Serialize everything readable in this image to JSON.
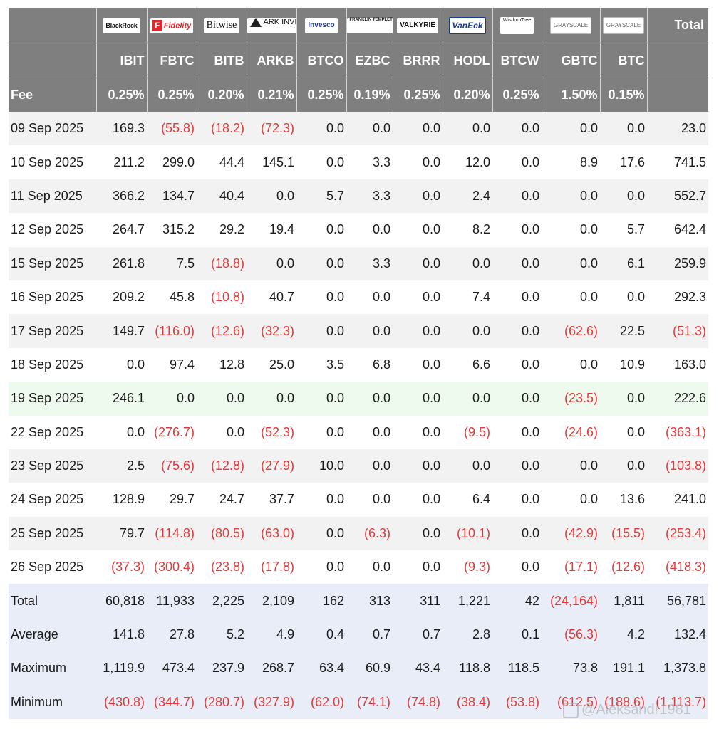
{
  "logos": [
    "BlackRock",
    "Fidelity",
    "Bitwise",
    "ARK INVEST",
    "Invesco",
    "FRANKLIN TEMPLETON",
    "VALKYRIE",
    "VanEck",
    "WisdomTree",
    "GRAYSCALE",
    "GRAYSCALE"
  ],
  "header": {
    "total_label": "Total",
    "fee_label": "Fee",
    "tickers": [
      "IBIT",
      "FBTC",
      "BITB",
      "ARKB",
      "BTCO",
      "EZBC",
      "BRRR",
      "HODL",
      "BTCW",
      "GBTC",
      "BTC"
    ],
    "fees": [
      "0.25%",
      "0.25%",
      "0.20%",
      "0.21%",
      "0.25%",
      "0.19%",
      "0.25%",
      "0.20%",
      "0.25%",
      "1.50%",
      "0.15%"
    ]
  },
  "rows": [
    {
      "date": "09 Sep 2025",
      "values": [
        "169.3",
        "(55.8)",
        "(18.2)",
        "(72.3)",
        "0.0",
        "0.0",
        "0.0",
        "0.0",
        "0.0",
        "0.0",
        "0.0"
      ],
      "total": "23.0"
    },
    {
      "date": "10 Sep 2025",
      "values": [
        "211.2",
        "299.0",
        "44.4",
        "145.1",
        "0.0",
        "3.3",
        "0.0",
        "12.0",
        "0.0",
        "8.9",
        "17.6"
      ],
      "total": "741.5"
    },
    {
      "date": "11 Sep 2025",
      "values": [
        "366.2",
        "134.7",
        "40.4",
        "0.0",
        "5.7",
        "3.3",
        "0.0",
        "2.4",
        "0.0",
        "0.0",
        "0.0"
      ],
      "total": "552.7"
    },
    {
      "date": "12 Sep 2025",
      "values": [
        "264.7",
        "315.2",
        "29.2",
        "19.4",
        "0.0",
        "0.0",
        "0.0",
        "8.2",
        "0.0",
        "0.0",
        "5.7"
      ],
      "total": "642.4"
    },
    {
      "date": "15 Sep 2025",
      "values": [
        "261.8",
        "7.5",
        "(18.8)",
        "0.0",
        "0.0",
        "3.3",
        "0.0",
        "0.0",
        "0.0",
        "0.0",
        "6.1"
      ],
      "total": "259.9"
    },
    {
      "date": "16 Sep 2025",
      "values": [
        "209.2",
        "45.8",
        "(10.8)",
        "40.7",
        "0.0",
        "0.0",
        "0.0",
        "7.4",
        "0.0",
        "0.0",
        "0.0"
      ],
      "total": "292.3"
    },
    {
      "date": "17 Sep 2025",
      "values": [
        "149.7",
        "(116.0)",
        "(12.6)",
        "(32.3)",
        "0.0",
        "0.0",
        "0.0",
        "0.0",
        "0.0",
        "(62.6)",
        "22.5"
      ],
      "total": "(51.3)"
    },
    {
      "date": "18 Sep 2025",
      "values": [
        "0.0",
        "97.4",
        "12.8",
        "25.0",
        "3.5",
        "6.8",
        "0.0",
        "6.6",
        "0.0",
        "0.0",
        "10.9"
      ],
      "total": "163.0"
    },
    {
      "date": "19 Sep 2025",
      "values": [
        "246.1",
        "0.0",
        "0.0",
        "0.0",
        "0.0",
        "0.0",
        "0.0",
        "0.0",
        "0.0",
        "(23.5)",
        "0.0"
      ],
      "total": "222.6"
    },
    {
      "date": "22 Sep 2025",
      "values": [
        "0.0",
        "(276.7)",
        "0.0",
        "(52.3)",
        "0.0",
        "0.0",
        "0.0",
        "(9.5)",
        "0.0",
        "(24.6)",
        "0.0"
      ],
      "total": "(363.1)"
    },
    {
      "date": "23 Sep 2025",
      "values": [
        "2.5",
        "(75.6)",
        "(12.8)",
        "(27.9)",
        "10.0",
        "0.0",
        "0.0",
        "0.0",
        "0.0",
        "0.0",
        "0.0"
      ],
      "total": "(103.8)"
    },
    {
      "date": "24 Sep 2025",
      "values": [
        "128.9",
        "29.7",
        "24.7",
        "37.7",
        "0.0",
        "0.0",
        "0.0",
        "6.4",
        "0.0",
        "0.0",
        "13.6"
      ],
      "total": "241.0"
    },
    {
      "date": "25 Sep 2025",
      "values": [
        "79.7",
        "(114.8)",
        "(80.5)",
        "(63.0)",
        "0.0",
        "(6.3)",
        "0.0",
        "(10.1)",
        "0.0",
        "(42.9)",
        "(15.5)"
      ],
      "total": "(253.4)"
    },
    {
      "date": "26 Sep 2025",
      "values": [
        "(37.3)",
        "(300.4)",
        "(23.8)",
        "(17.8)",
        "0.0",
        "0.0",
        "0.0",
        "(9.3)",
        "0.0",
        "(17.1)",
        "(12.6)"
      ],
      "total": "(418.3)"
    }
  ],
  "summary": [
    {
      "label": "Total",
      "values": [
        "60,818",
        "11,933",
        "2,225",
        "2,109",
        "162",
        "313",
        "311",
        "1,221",
        "42",
        "(24,164)",
        "1,811"
      ],
      "total": "56,781"
    },
    {
      "label": "Average",
      "values": [
        "141.8",
        "27.8",
        "5.2",
        "4.9",
        "0.4",
        "0.7",
        "0.7",
        "2.8",
        "0.1",
        "(56.3)",
        "4.2"
      ],
      "total": "132.4"
    },
    {
      "label": "Maximum",
      "values": [
        "1,119.9",
        "473.4",
        "237.9",
        "268.7",
        "63.4",
        "60.9",
        "43.4",
        "118.8",
        "118.5",
        "73.8",
        "191.1"
      ],
      "total": "1,373.8"
    },
    {
      "label": "Minimum",
      "values": [
        "(430.8)",
        "(344.7)",
        "(280.7)",
        "(327.9)",
        "(62.0)",
        "(74.1)",
        "(74.8)",
        "(38.4)",
        "(53.8)",
        "(612.5)",
        "(188.6)"
      ],
      "total": "(1,113.7)"
    }
  ],
  "watermark": "@Aleksandr1981",
  "colors": {
    "header_bg": "#7f7f7f",
    "negative": "#e23a3a",
    "row_alt": "#f2f2f2",
    "row_highlight": "#eefaee",
    "summary_bg": "#e9edf8"
  }
}
